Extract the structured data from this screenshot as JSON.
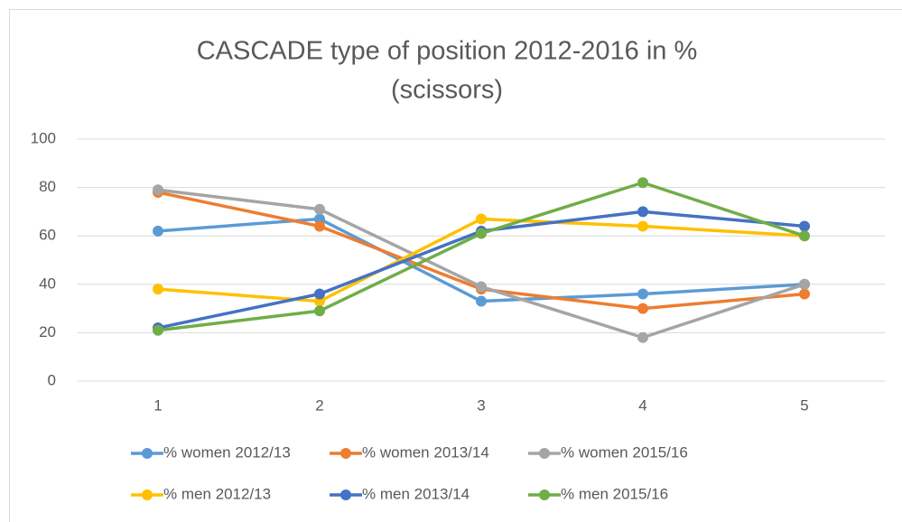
{
  "chart_data": {
    "type": "line",
    "title": "CASCADE type of position 2012-2016 in %",
    "subtitle": "(scissors)",
    "categories": [
      "1",
      "2",
      "3",
      "4",
      "5"
    ],
    "series": [
      {
        "name": "% women 2012/13",
        "color": "#5b9bd5",
        "values": [
          62,
          67,
          33,
          36,
          40
        ]
      },
      {
        "name": "% women 2013/14",
        "color": "#ed7d31",
        "values": [
          78,
          64,
          38,
          30,
          36
        ]
      },
      {
        "name": "% women 2015/16",
        "color": "#a5a5a5",
        "values": [
          79,
          71,
          39,
          18,
          40
        ]
      },
      {
        "name": "% men 2012/13",
        "color": "#ffc000",
        "values": [
          38,
          33,
          67,
          64,
          60
        ]
      },
      {
        "name": "% men 2013/14",
        "color": "#4472c4",
        "values": [
          22,
          36,
          62,
          70,
          64
        ]
      },
      {
        "name": "% men 2015/16",
        "color": "#70ad47",
        "values": [
          21,
          29,
          61,
          82,
          60
        ]
      }
    ],
    "ylim": [
      0,
      100
    ],
    "yticks": [
      0,
      20,
      40,
      60,
      80,
      100
    ],
    "grid": true,
    "legend": "bottom"
  }
}
